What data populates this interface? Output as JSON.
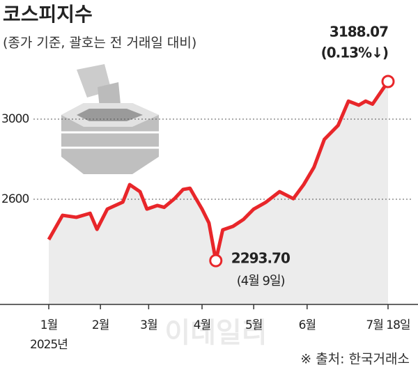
{
  "chart_data": {
    "type": "line",
    "title": "코스피지수",
    "subtitle": "(종가 기준, 괄호는 전 거래일 대비)",
    "x": [
      2,
      10,
      18,
      26,
      30,
      36,
      45,
      49,
      55,
      59,
      65,
      69,
      75,
      80,
      84,
      87,
      91,
      95,
      99,
      103,
      109,
      115,
      121,
      128,
      136,
      144,
      150,
      156,
      162,
      170,
      176,
      182,
      186,
      190,
      199
    ],
    "values": [
      2399,
      2520,
      2510,
      2530,
      2450,
      2551,
      2586,
      2673,
      2638,
      2551,
      2569,
      2560,
      2603,
      2649,
      2655,
      2610,
      2551,
      2482,
      2293.7,
      2447,
      2465,
      2499,
      2551,
      2585,
      2638,
      2603,
      2673,
      2760,
      2899,
      2969,
      3090,
      3070,
      3090,
      3075,
      3188.07
    ],
    "value_labels": [
      null,
      null,
      null,
      null,
      null,
      null,
      null,
      null,
      null,
      null,
      null,
      null,
      null,
      null,
      null,
      null,
      null,
      null,
      "2293.70",
      null,
      null,
      null,
      null,
      null,
      null,
      null,
      null,
      null,
      null,
      null,
      null,
      null,
      null,
      null,
      "3188.07"
    ],
    "annotations": [
      "(4월 9일)",
      "(0.13%↓)"
    ],
    "color": "#e8262a",
    "area_color": "#ececec",
    "xlim": [
      2,
      199
    ],
    "xticks": [
      {
        "value": 2,
        "label": "1월"
      },
      {
        "value": 32,
        "label": "2월"
      },
      {
        "value": 60,
        "label": "3월"
      },
      {
        "value": 91,
        "label": "4월"
      },
      {
        "value": 121,
        "label": "5월"
      },
      {
        "value": 152,
        "label": "6월"
      },
      {
        "value": 199,
        "label": "7월 18일"
      }
    ],
    "year_label": "2025년",
    "ylim": [
      2075,
      3500
    ],
    "yticks": [
      2600,
      3000
    ],
    "grid": true,
    "source": "※ 출처: 한국거래소",
    "watermark": "이데일리"
  }
}
